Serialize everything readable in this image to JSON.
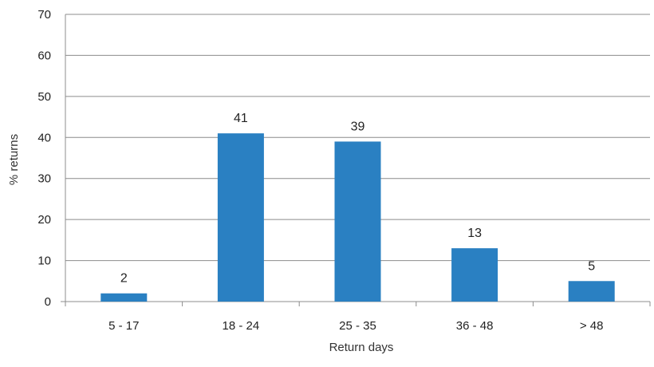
{
  "chart_data": {
    "type": "bar",
    "title": "",
    "xlabel": "Return days",
    "ylabel": "% returns",
    "categories": [
      "5 - 17",
      "18 - 24",
      "25 - 35",
      "36 - 48",
      "> 48"
    ],
    "values": [
      2,
      41,
      39,
      13,
      5
    ],
    "data_labels": [
      "2",
      "41",
      "39",
      "13",
      "5"
    ],
    "ylim": [
      0,
      70
    ],
    "yticks": [
      0,
      10,
      20,
      30,
      40,
      50,
      60,
      70
    ],
    "ytick_labels": [
      "0",
      "10",
      "20",
      "30",
      "40",
      "50",
      "60",
      "70"
    ],
    "grid": "horizontal",
    "legend": "none",
    "bar_color": "#2a80c2"
  }
}
